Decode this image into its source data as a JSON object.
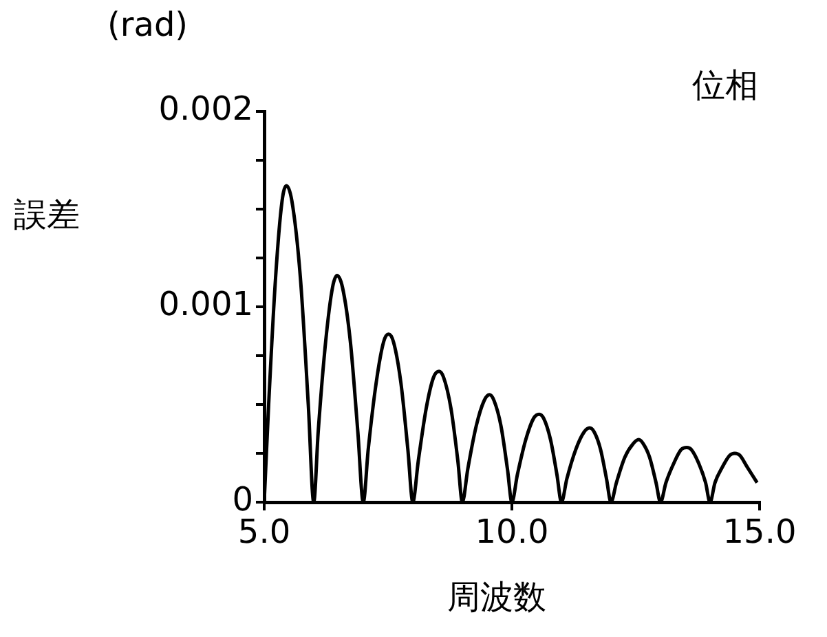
{
  "chart_data": {
    "type": "line",
    "title": "位相",
    "xlabel": "周波数",
    "ylabel": "誤差",
    "annotations": [
      "(rad)"
    ],
    "x": [
      5.0,
      5.09,
      5.23,
      5.36,
      5.45,
      5.56,
      5.73,
      5.89,
      6.0,
      6.09,
      6.24,
      6.38,
      6.47,
      6.58,
      6.74,
      6.89,
      7.0,
      7.1,
      7.26,
      7.41,
      7.51,
      7.61,
      7.76,
      7.9,
      8.0,
      8.11,
      8.27,
      8.42,
      8.53,
      8.62,
      8.77,
      8.91,
      9.0,
      9.11,
      9.28,
      9.44,
      9.55,
      9.64,
      9.78,
      9.91,
      10.0,
      10.11,
      10.28,
      10.44,
      10.55,
      10.64,
      10.78,
      10.91,
      11.0,
      11.11,
      11.29,
      11.46,
      11.57,
      11.66,
      11.79,
      11.91,
      12.0,
      12.11,
      12.28,
      12.45,
      12.56,
      12.65,
      12.78,
      12.91,
      13.0,
      13.11,
      13.27,
      13.42,
      13.53,
      13.62,
      13.77,
      13.91,
      14.0,
      14.1,
      14.25,
      14.4,
      14.5,
      14.6,
      14.75,
      14.95
    ],
    "series": [
      {
        "color": "#000000",
        "values": [
          0,
          0.0005,
          0.00115,
          0.00154,
          0.00162,
          0.00154,
          0.00115,
          0.0005,
          0,
          0.00036,
          0.00082,
          0.0011,
          0.00116,
          0.0011,
          0.00082,
          0.00036,
          0,
          0.00027,
          0.00061,
          0.00082,
          0.00086,
          0.00082,
          0.00061,
          0.00027,
          0,
          0.00021,
          0.00048,
          0.00064,
          0.00067,
          0.00064,
          0.00048,
          0.00021,
          0,
          0.00017,
          0.00039,
          0.00052,
          0.00055,
          0.00052,
          0.00039,
          0.00017,
          0,
          0.00014,
          0.00032,
          0.00043,
          0.00045,
          0.00043,
          0.00032,
          0.00014,
          0,
          0.00012,
          0.00027,
          0.00036,
          0.00038,
          0.00036,
          0.00027,
          0.00012,
          0,
          0.0001,
          0.00023,
          0.0003,
          0.00032,
          0.0003,
          0.00023,
          0.0001,
          0,
          0.0001,
          0.0002,
          0.00027,
          0.00028,
          0.00027,
          0.0002,
          0.0001,
          0,
          0.0001,
          0.00018,
          0.00024,
          0.00025,
          0.00024,
          0.00018,
          0.0001
        ]
      }
    ],
    "xlim": [
      5.0,
      15.0
    ],
    "xticks": [
      {
        "value": 5.0,
        "label": "5.0"
      },
      {
        "value": 10.0,
        "label": "10.0"
      },
      {
        "value": 15.0,
        "label": "15.0"
      }
    ],
    "ylim": [
      0,
      0.002
    ],
    "yticks": [
      0,
      {
        "value": 0.00025,
        "label": null
      },
      {
        "value": 0.0005,
        "label": null
      },
      {
        "value": 0.00075,
        "label": null
      },
      0.001,
      {
        "value": 0.00125,
        "label": null
      },
      {
        "value": 0.0015,
        "label": null
      },
      {
        "value": 0.00175,
        "label": null
      },
      0.002
    ],
    "grid": false,
    "legend": false,
    "marker": "none",
    "line_style": "solid"
  }
}
